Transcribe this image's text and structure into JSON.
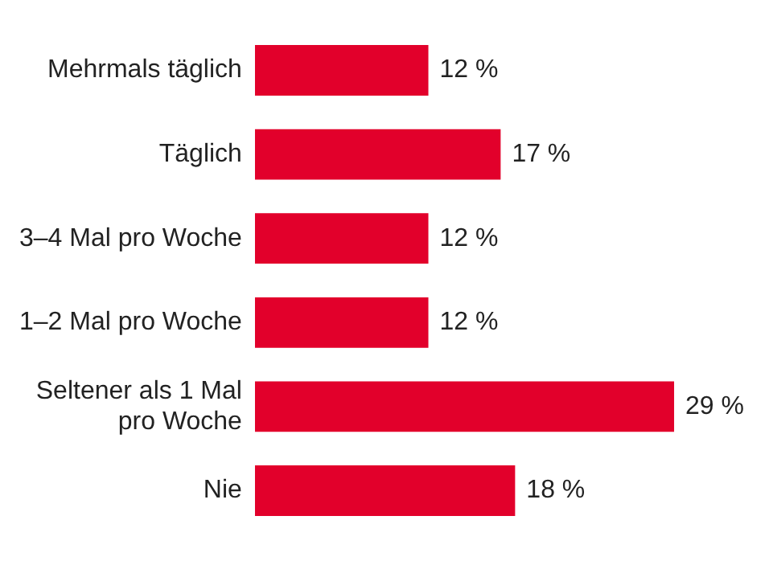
{
  "chart_data": {
    "type": "bar",
    "orientation": "horizontal",
    "categories": [
      "Mehrmals täglich",
      "Täglich",
      "3–4 Mal pro Woche",
      "1–2 Mal pro Woche",
      "Seltener als 1 Mal pro Woche",
      "Nie"
    ],
    "values": [
      12,
      17,
      12,
      12,
      29,
      18
    ],
    "color": "#e2002b",
    "value_labels": [
      "12 %",
      "17 %",
      "12 %",
      "12 %",
      "29 %",
      "18 %"
    ],
    "tick_labels": "y",
    "grid": false,
    "legend": false
  }
}
